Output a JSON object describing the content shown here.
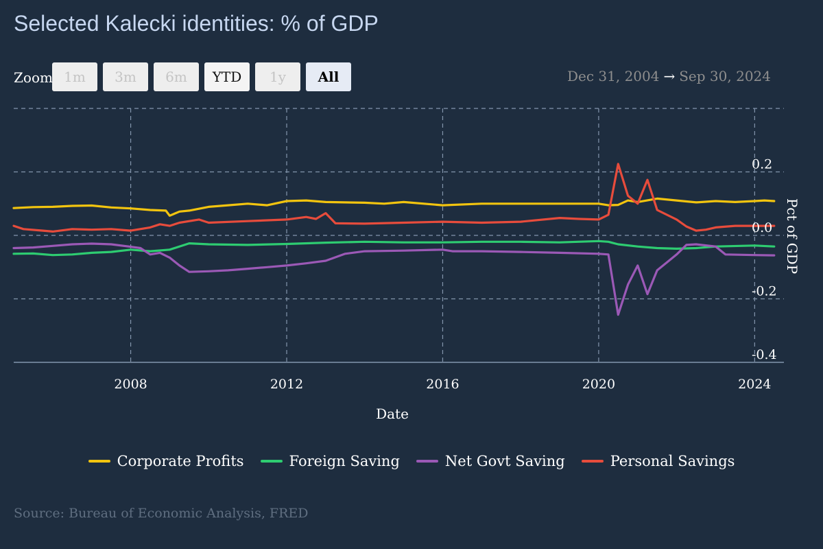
{
  "title": "Selected Kalecki identities: % of GDP",
  "zoom": {
    "label": "Zoom",
    "buttons": [
      {
        "label": "1m",
        "state": "disabled"
      },
      {
        "label": "3m",
        "state": "disabled"
      },
      {
        "label": "6m",
        "state": "disabled"
      },
      {
        "label": "YTD",
        "state": "normal"
      },
      {
        "label": "1y",
        "state": "disabled"
      },
      {
        "label": "All",
        "state": "active"
      }
    ]
  },
  "range": {
    "from": "Dec 31, 2004",
    "arrow": "→",
    "to": "Sep 30, 2024"
  },
  "source": "Source: Bureau of Economic Analysis, FRED",
  "chart_data": {
    "type": "line",
    "xlabel": "Date",
    "ylabel": "Pct of GDP",
    "xlim": [
      2005.0,
      2024.75
    ],
    "ylim": [
      -0.4,
      0.4
    ],
    "x_ticks": [
      2008,
      2012,
      2016,
      2020,
      2024
    ],
    "x_tick_labels": [
      "2008",
      "2012",
      "2016",
      "2020",
      "2024"
    ],
    "y_ticks": [
      0.2,
      0.0,
      -0.2,
      -0.4
    ],
    "y_tick_labels": [
      "0.2",
      "0.0",
      "-0.2",
      "-0.4"
    ],
    "grid": true,
    "legend_position": "bottom-center",
    "series": [
      {
        "name": "Corporate Profits",
        "color": "#f2c40f",
        "points": [
          [
            2005.0,
            0.086
          ],
          [
            2005.5,
            0.089
          ],
          [
            2006.0,
            0.09
          ],
          [
            2006.5,
            0.093
          ],
          [
            2007.0,
            0.094
          ],
          [
            2007.5,
            0.088
          ],
          [
            2008.0,
            0.085
          ],
          [
            2008.5,
            0.08
          ],
          [
            2008.9,
            0.078
          ],
          [
            2009.0,
            0.062
          ],
          [
            2009.25,
            0.075
          ],
          [
            2009.5,
            0.078
          ],
          [
            2010.0,
            0.09
          ],
          [
            2010.5,
            0.095
          ],
          [
            2011.0,
            0.1
          ],
          [
            2011.5,
            0.095
          ],
          [
            2012.0,
            0.108
          ],
          [
            2012.5,
            0.11
          ],
          [
            2013.0,
            0.105
          ],
          [
            2014.0,
            0.103
          ],
          [
            2014.5,
            0.1
          ],
          [
            2015.0,
            0.105
          ],
          [
            2016.0,
            0.095
          ],
          [
            2017.0,
            0.1
          ],
          [
            2018.0,
            0.1
          ],
          [
            2019.0,
            0.1
          ],
          [
            2020.0,
            0.1
          ],
          [
            2020.25,
            0.095
          ],
          [
            2020.5,
            0.096
          ],
          [
            2020.75,
            0.11
          ],
          [
            2021.0,
            0.105
          ],
          [
            2021.5,
            0.116
          ],
          [
            2022.0,
            0.11
          ],
          [
            2022.5,
            0.104
          ],
          [
            2023.0,
            0.108
          ],
          [
            2023.5,
            0.105
          ],
          [
            2024.0,
            0.108
          ],
          [
            2024.25,
            0.11
          ],
          [
            2024.5,
            0.108
          ]
        ]
      },
      {
        "name": "Foreign Saving",
        "color": "#2ecc71",
        "points": [
          [
            2005.0,
            -0.058
          ],
          [
            2005.5,
            -0.057
          ],
          [
            2006.0,
            -0.062
          ],
          [
            2006.5,
            -0.06
          ],
          [
            2007.0,
            -0.055
          ],
          [
            2007.5,
            -0.052
          ],
          [
            2008.0,
            -0.045
          ],
          [
            2008.5,
            -0.05
          ],
          [
            2009.0,
            -0.045
          ],
          [
            2009.5,
            -0.025
          ],
          [
            2010.0,
            -0.028
          ],
          [
            2011.0,
            -0.03
          ],
          [
            2012.0,
            -0.027
          ],
          [
            2013.0,
            -0.023
          ],
          [
            2014.0,
            -0.02
          ],
          [
            2015.0,
            -0.022
          ],
          [
            2016.0,
            -0.022
          ],
          [
            2017.0,
            -0.02
          ],
          [
            2018.0,
            -0.02
          ],
          [
            2019.0,
            -0.022
          ],
          [
            2020.0,
            -0.018
          ],
          [
            2020.25,
            -0.02
          ],
          [
            2020.5,
            -0.028
          ],
          [
            2021.0,
            -0.035
          ],
          [
            2021.5,
            -0.04
          ],
          [
            2022.0,
            -0.042
          ],
          [
            2022.5,
            -0.04
          ],
          [
            2023.0,
            -0.035
          ],
          [
            2024.0,
            -0.032
          ],
          [
            2024.5,
            -0.035
          ]
        ]
      },
      {
        "name": "Net Govt Saving",
        "color": "#9b59b6",
        "points": [
          [
            2005.0,
            -0.04
          ],
          [
            2005.5,
            -0.038
          ],
          [
            2006.0,
            -0.033
          ],
          [
            2006.5,
            -0.028
          ],
          [
            2007.0,
            -0.026
          ],
          [
            2007.5,
            -0.028
          ],
          [
            2008.0,
            -0.036
          ],
          [
            2008.25,
            -0.04
          ],
          [
            2008.5,
            -0.06
          ],
          [
            2008.75,
            -0.055
          ],
          [
            2009.0,
            -0.07
          ],
          [
            2009.25,
            -0.095
          ],
          [
            2009.5,
            -0.115
          ],
          [
            2010.0,
            -0.113
          ],
          [
            2010.5,
            -0.11
          ],
          [
            2011.0,
            -0.105
          ],
          [
            2011.5,
            -0.1
          ],
          [
            2012.0,
            -0.095
          ],
          [
            2012.5,
            -0.088
          ],
          [
            2013.0,
            -0.08
          ],
          [
            2013.5,
            -0.058
          ],
          [
            2014.0,
            -0.05
          ],
          [
            2015.0,
            -0.048
          ],
          [
            2016.0,
            -0.045
          ],
          [
            2016.25,
            -0.05
          ],
          [
            2017.0,
            -0.05
          ],
          [
            2018.0,
            -0.052
          ],
          [
            2019.0,
            -0.055
          ],
          [
            2020.0,
            -0.058
          ],
          [
            2020.25,
            -0.06
          ],
          [
            2020.5,
            -0.25
          ],
          [
            2020.75,
            -0.155
          ],
          [
            2021.0,
            -0.095
          ],
          [
            2021.25,
            -0.185
          ],
          [
            2021.5,
            -0.11
          ],
          [
            2022.0,
            -0.06
          ],
          [
            2022.25,
            -0.03
          ],
          [
            2022.5,
            -0.028
          ],
          [
            2023.0,
            -0.035
          ],
          [
            2023.25,
            -0.06
          ],
          [
            2024.0,
            -0.062
          ],
          [
            2024.5,
            -0.063
          ]
        ]
      },
      {
        "name": "Personal Savings",
        "color": "#e74c3c",
        "points": [
          [
            2005.0,
            0.03
          ],
          [
            2005.25,
            0.02
          ],
          [
            2005.75,
            0.015
          ],
          [
            2006.0,
            0.012
          ],
          [
            2006.5,
            0.02
          ],
          [
            2007.0,
            0.018
          ],
          [
            2007.5,
            0.02
          ],
          [
            2008.0,
            0.015
          ],
          [
            2008.5,
            0.025
          ],
          [
            2008.75,
            0.035
          ],
          [
            2009.0,
            0.03
          ],
          [
            2009.25,
            0.04
          ],
          [
            2009.75,
            0.05
          ],
          [
            2010.0,
            0.04
          ],
          [
            2011.0,
            0.045
          ],
          [
            2012.0,
            0.05
          ],
          [
            2012.5,
            0.058
          ],
          [
            2012.75,
            0.052
          ],
          [
            2013.0,
            0.07
          ],
          [
            2013.25,
            0.038
          ],
          [
            2014.0,
            0.037
          ],
          [
            2015.0,
            0.04
          ],
          [
            2016.0,
            0.043
          ],
          [
            2017.0,
            0.04
          ],
          [
            2018.0,
            0.043
          ],
          [
            2019.0,
            0.055
          ],
          [
            2019.5,
            0.052
          ],
          [
            2020.0,
            0.05
          ],
          [
            2020.25,
            0.065
          ],
          [
            2020.5,
            0.225
          ],
          [
            2020.75,
            0.125
          ],
          [
            2021.0,
            0.1
          ],
          [
            2021.25,
            0.175
          ],
          [
            2021.5,
            0.08
          ],
          [
            2022.0,
            0.05
          ],
          [
            2022.25,
            0.028
          ],
          [
            2022.5,
            0.015
          ],
          [
            2022.75,
            0.018
          ],
          [
            2023.0,
            0.025
          ],
          [
            2023.5,
            0.03
          ],
          [
            2024.0,
            0.03
          ],
          [
            2024.5,
            0.03
          ]
        ]
      }
    ]
  }
}
